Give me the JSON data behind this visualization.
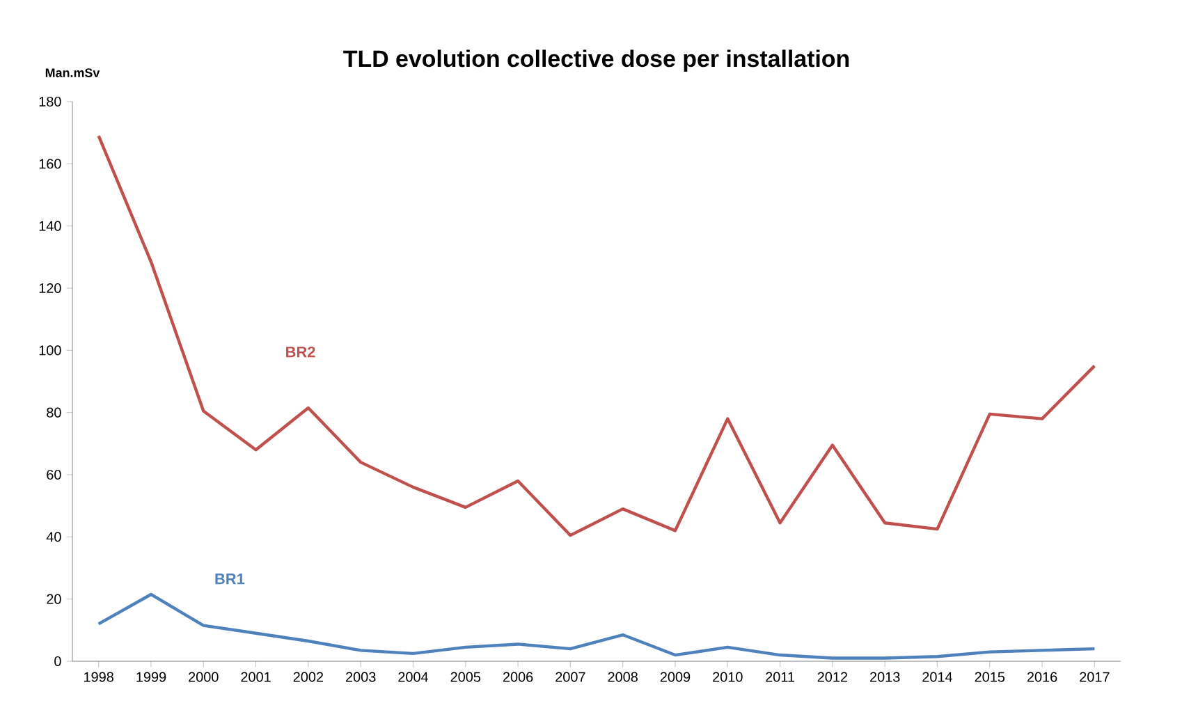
{
  "chart_data": {
    "type": "line",
    "title": "TLD evolution collective dose per installation",
    "ylabel": "Man.mSv",
    "categories": [
      "1998",
      "1999",
      "2000",
      "2001",
      "2002",
      "2003",
      "2004",
      "2005",
      "2006",
      "2007",
      "2008",
      "2009",
      "2010",
      "2011",
      "2012",
      "2013",
      "2014",
      "2015",
      "2016",
      "2017"
    ],
    "series": [
      {
        "name": "BR2",
        "color": "#c0504d",
        "values": [
          169,
          128.5,
          80.5,
          68,
          81.5,
          64,
          56,
          49.5,
          58,
          40.5,
          49,
          42,
          78,
          44.5,
          69.5,
          44.5,
          42.5,
          79.5,
          78,
          95
        ]
      },
      {
        "name": "BR1",
        "color": "#4f81bd",
        "values": [
          12,
          21.5,
          11.5,
          9,
          6.5,
          3.5,
          2.5,
          4.5,
          5.5,
          4,
          8.5,
          2,
          4.5,
          2,
          1,
          1,
          1.5,
          3,
          3.5,
          4
        ]
      }
    ],
    "ylim": [
      0,
      180
    ],
    "yticks": [
      0,
      20,
      40,
      60,
      80,
      100,
      120,
      140,
      160,
      180
    ]
  }
}
